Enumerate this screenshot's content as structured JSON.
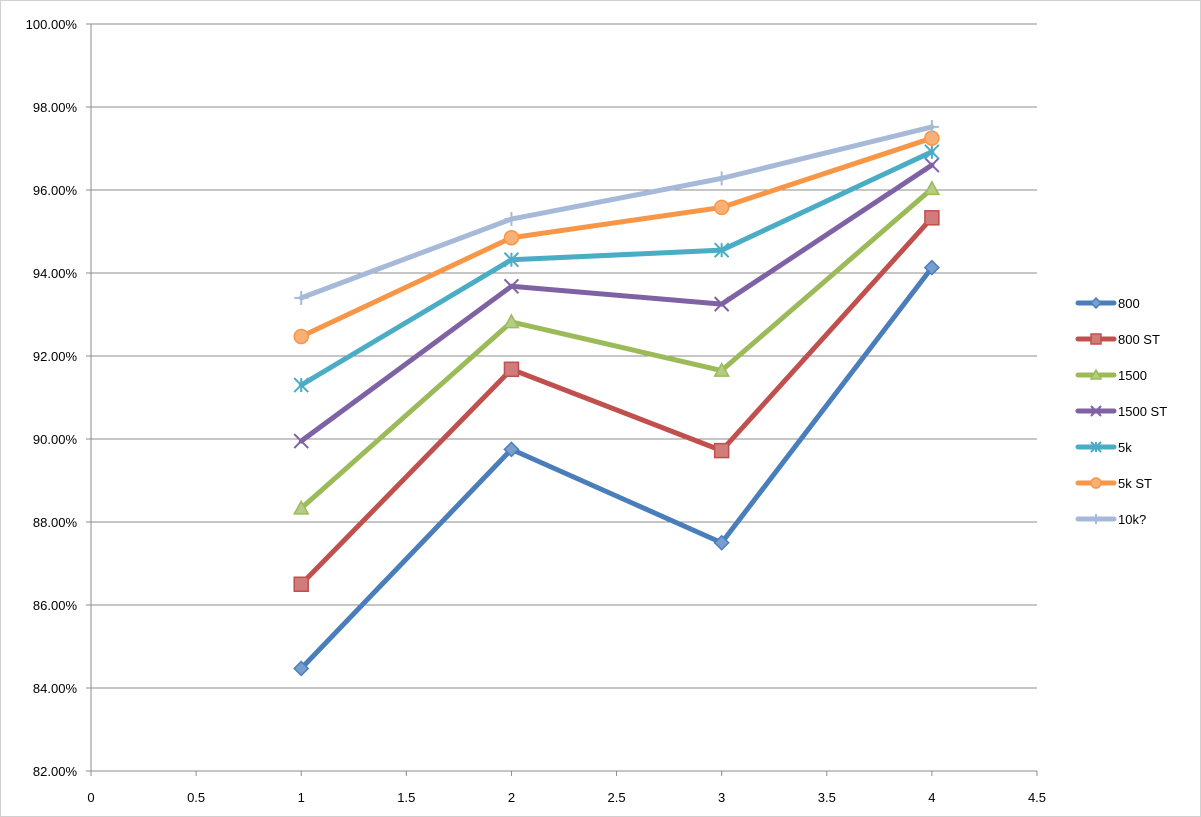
{
  "chart_data": {
    "type": "line",
    "title": "",
    "xlabel": "",
    "ylabel": "",
    "xlim": [
      0,
      4.5
    ],
    "ylim": [
      82,
      100
    ],
    "x_ticks": [
      "0",
      "0.5",
      "1",
      "1.5",
      "2",
      "2.5",
      "3",
      "3.5",
      "4",
      "4.5"
    ],
    "y_ticks": [
      "82.00%",
      "84.00%",
      "86.00%",
      "88.00%",
      "90.00%",
      "92.00%",
      "94.00%",
      "96.00%",
      "98.00%",
      "100.00%"
    ],
    "grid": "horizontal",
    "legend_position": "right",
    "x": [
      1,
      2,
      3,
      4
    ],
    "series": [
      {
        "name": "800",
        "color": "#4a7ebb",
        "marker": "diamond",
        "values": [
          84.47,
          89.75,
          87.5,
          94.13
        ]
      },
      {
        "name": "800 ST",
        "color": "#c0504d",
        "marker": "square",
        "values": [
          86.5,
          91.68,
          89.72,
          95.33
        ]
      },
      {
        "name": "1500",
        "color": "#9bbb59",
        "marker": "triangle",
        "values": [
          88.33,
          92.82,
          91.65,
          96.03
        ]
      },
      {
        "name": "1500 ST",
        "color": "#7f62a4",
        "marker": "x",
        "values": [
          89.95,
          93.68,
          93.25,
          96.6
        ]
      },
      {
        "name": "5k",
        "color": "#4bacc6",
        "marker": "asterisk",
        "values": [
          91.3,
          94.32,
          94.55,
          96.92
        ]
      },
      {
        "name": "5k ST",
        "color": "#f79646",
        "marker": "circle",
        "values": [
          92.47,
          94.85,
          95.58,
          97.25
        ]
      },
      {
        "name": "10k?",
        "color": "#a6b9d8",
        "marker": "plus",
        "values": [
          93.4,
          95.3,
          96.28,
          97.52
        ]
      }
    ]
  }
}
